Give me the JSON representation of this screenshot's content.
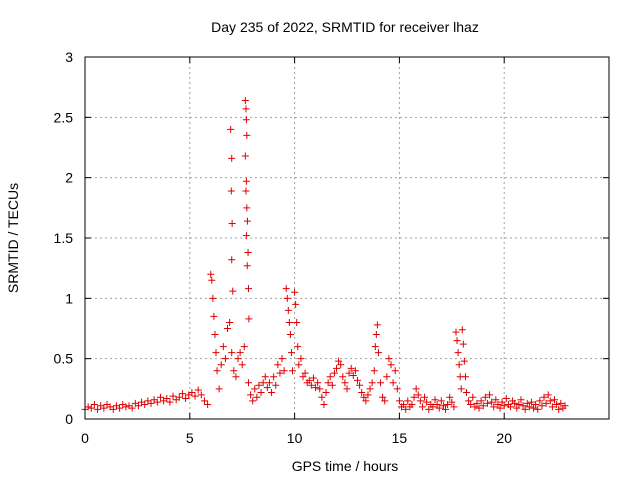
{
  "chart_data": {
    "type": "scatter",
    "title": "Day 235 of 2022, SRMTID for receiver lhaz",
    "xlabel": "GPS time / hours",
    "ylabel": "SRMTID / TECUs",
    "xlim": [
      0,
      25
    ],
    "ylim": [
      0,
      3
    ],
    "xticks": [
      0,
      5,
      10,
      15,
      20
    ],
    "xtick_labels": [
      "0",
      "5",
      "10",
      "15",
      "20"
    ],
    "yticks": [
      0,
      0.5,
      1,
      1.5,
      2,
      2.5,
      3
    ],
    "ytick_labels": [
      "0",
      "0.5",
      "1",
      "1.5",
      "2",
      "2.5",
      "3"
    ],
    "grid": true,
    "marker": "+",
    "color": "#e00000",
    "series": [
      {
        "name": "SRMTID",
        "points": [
          [
            0.0,
            0.08
          ],
          [
            0.15,
            0.1
          ],
          [
            0.3,
            0.09
          ],
          [
            0.45,
            0.12
          ],
          [
            0.6,
            0.08
          ],
          [
            0.75,
            0.11
          ],
          [
            0.9,
            0.09
          ],
          [
            1.05,
            0.12
          ],
          [
            1.2,
            0.1
          ],
          [
            1.35,
            0.08
          ],
          [
            1.5,
            0.11
          ],
          [
            1.65,
            0.09
          ],
          [
            1.8,
            0.12
          ],
          [
            1.95,
            0.1
          ],
          [
            2.1,
            0.11
          ],
          [
            2.25,
            0.09
          ],
          [
            2.4,
            0.13
          ],
          [
            2.55,
            0.11
          ],
          [
            2.7,
            0.14
          ],
          [
            2.85,
            0.12
          ],
          [
            3.0,
            0.15
          ],
          [
            3.15,
            0.13
          ],
          [
            3.3,
            0.16
          ],
          [
            3.45,
            0.14
          ],
          [
            3.6,
            0.18
          ],
          [
            3.75,
            0.15
          ],
          [
            3.9,
            0.17
          ],
          [
            4.05,
            0.14
          ],
          [
            4.2,
            0.19
          ],
          [
            4.35,
            0.16
          ],
          [
            4.5,
            0.18
          ],
          [
            4.65,
            0.21
          ],
          [
            4.8,
            0.17
          ],
          [
            4.95,
            0.2
          ],
          [
            5.1,
            0.22
          ],
          [
            5.25,
            0.19
          ],
          [
            5.4,
            0.24
          ],
          [
            5.55,
            0.2
          ],
          [
            5.7,
            0.15
          ],
          [
            5.85,
            0.12
          ],
          [
            6.0,
            1.2
          ],
          [
            6.05,
            1.15
          ],
          [
            6.1,
            1.0
          ],
          [
            6.15,
            0.85
          ],
          [
            6.2,
            0.7
          ],
          [
            6.25,
            0.55
          ],
          [
            6.3,
            0.4
          ],
          [
            6.4,
            0.25
          ],
          [
            6.5,
            0.45
          ],
          [
            6.6,
            0.6
          ],
          [
            6.7,
            0.5
          ],
          [
            6.8,
            0.75
          ],
          [
            6.9,
            0.8
          ],
          [
            7.0,
            0.55
          ],
          [
            7.1,
            0.4
          ],
          [
            7.2,
            0.35
          ],
          [
            7.3,
            0.5
          ],
          [
            7.4,
            0.55
          ],
          [
            7.5,
            0.45
          ],
          [
            7.6,
            0.6
          ],
          [
            6.95,
            2.4
          ],
          [
            7.0,
            2.16
          ],
          [
            6.98,
            1.89
          ],
          [
            7.02,
            1.62
          ],
          [
            7.0,
            1.32
          ],
          [
            7.05,
            1.06
          ],
          [
            7.65,
            2.64
          ],
          [
            7.68,
            2.57
          ],
          [
            7.7,
            2.48
          ],
          [
            7.72,
            2.35
          ],
          [
            7.65,
            2.18
          ],
          [
            7.7,
            1.97
          ],
          [
            7.68,
            1.89
          ],
          [
            7.72,
            1.75
          ],
          [
            7.75,
            1.64
          ],
          [
            7.7,
            1.52
          ],
          [
            7.78,
            1.38
          ],
          [
            7.74,
            1.27
          ],
          [
            7.8,
            1.08
          ],
          [
            7.82,
            0.83
          ],
          [
            7.8,
            0.3
          ],
          [
            7.9,
            0.2
          ],
          [
            8.0,
            0.15
          ],
          [
            8.1,
            0.25
          ],
          [
            8.2,
            0.18
          ],
          [
            8.3,
            0.28
          ],
          [
            8.4,
            0.22
          ],
          [
            8.5,
            0.3
          ],
          [
            8.6,
            0.35
          ],
          [
            8.7,
            0.26
          ],
          [
            8.8,
            0.3
          ],
          [
            8.9,
            0.22
          ],
          [
            9.0,
            0.35
          ],
          [
            9.1,
            0.28
          ],
          [
            9.2,
            0.45
          ],
          [
            9.3,
            0.38
          ],
          [
            9.4,
            0.5
          ],
          [
            9.5,
            0.4
          ],
          [
            9.6,
            1.08
          ],
          [
            9.65,
            1.0
          ],
          [
            9.7,
            0.9
          ],
          [
            9.75,
            0.8
          ],
          [
            9.8,
            0.7
          ],
          [
            9.85,
            0.55
          ],
          [
            9.9,
            0.4
          ],
          [
            10.0,
            1.05
          ],
          [
            10.05,
            0.95
          ],
          [
            10.1,
            0.8
          ],
          [
            10.15,
            0.6
          ],
          [
            10.2,
            0.45
          ],
          [
            10.3,
            0.5
          ],
          [
            10.4,
            0.35
          ],
          [
            10.5,
            0.38
          ],
          [
            10.6,
            0.3
          ],
          [
            10.7,
            0.32
          ],
          [
            10.8,
            0.28
          ],
          [
            10.9,
            0.34
          ],
          [
            11.0,
            0.26
          ],
          [
            11.1,
            0.3
          ],
          [
            11.2,
            0.25
          ],
          [
            11.3,
            0.18
          ],
          [
            11.4,
            0.12
          ],
          [
            11.5,
            0.22
          ],
          [
            11.6,
            0.3
          ],
          [
            11.7,
            0.35
          ],
          [
            11.8,
            0.28
          ],
          [
            11.9,
            0.38
          ],
          [
            12.0,
            0.42
          ],
          [
            12.1,
            0.48
          ],
          [
            12.2,
            0.45
          ],
          [
            12.3,
            0.35
          ],
          [
            12.4,
            0.3
          ],
          [
            12.5,
            0.25
          ],
          [
            12.6,
            0.38
          ],
          [
            12.7,
            0.42
          ],
          [
            12.8,
            0.36
          ],
          [
            12.9,
            0.4
          ],
          [
            13.0,
            0.32
          ],
          [
            13.1,
            0.28
          ],
          [
            13.2,
            0.22
          ],
          [
            13.3,
            0.18
          ],
          [
            13.4,
            0.15
          ],
          [
            13.5,
            0.2
          ],
          [
            13.6,
            0.25
          ],
          [
            13.7,
            0.3
          ],
          [
            13.8,
            0.4
          ],
          [
            13.85,
            0.6
          ],
          [
            13.9,
            0.7
          ],
          [
            13.95,
            0.78
          ],
          [
            14.0,
            0.55
          ],
          [
            14.1,
            0.3
          ],
          [
            14.2,
            0.18
          ],
          [
            14.3,
            0.15
          ],
          [
            14.4,
            0.35
          ],
          [
            14.5,
            0.5
          ],
          [
            14.6,
            0.45
          ],
          [
            14.7,
            0.3
          ],
          [
            14.8,
            0.4
          ],
          [
            14.9,
            0.25
          ],
          [
            15.0,
            0.15
          ],
          [
            15.1,
            0.1
          ],
          [
            15.2,
            0.12
          ],
          [
            15.3,
            0.08
          ],
          [
            15.4,
            0.15
          ],
          [
            15.5,
            0.1
          ],
          [
            15.6,
            0.12
          ],
          [
            15.7,
            0.18
          ],
          [
            15.8,
            0.25
          ],
          [
            15.9,
            0.2
          ],
          [
            16.0,
            0.15
          ],
          [
            16.1,
            0.1
          ],
          [
            16.2,
            0.18
          ],
          [
            16.3,
            0.14
          ],
          [
            16.4,
            0.08
          ],
          [
            16.5,
            0.12
          ],
          [
            16.6,
            0.1
          ],
          [
            16.7,
            0.16
          ],
          [
            16.8,
            0.12
          ],
          [
            16.9,
            0.09
          ],
          [
            17.0,
            0.15
          ],
          [
            17.1,
            0.11
          ],
          [
            17.2,
            0.08
          ],
          [
            17.3,
            0.12
          ],
          [
            17.4,
            0.18
          ],
          [
            17.5,
            0.14
          ],
          [
            17.6,
            0.1
          ],
          [
            17.7,
            0.72
          ],
          [
            17.75,
            0.65
          ],
          [
            17.8,
            0.55
          ],
          [
            17.85,
            0.45
          ],
          [
            17.9,
            0.35
          ],
          [
            17.95,
            0.25
          ],
          [
            18.0,
            0.74
          ],
          [
            18.05,
            0.62
          ],
          [
            18.1,
            0.48
          ],
          [
            18.15,
            0.35
          ],
          [
            18.2,
            0.22
          ],
          [
            18.3,
            0.15
          ],
          [
            18.4,
            0.12
          ],
          [
            18.5,
            0.18
          ],
          [
            18.6,
            0.1
          ],
          [
            18.7,
            0.13
          ],
          [
            18.8,
            0.09
          ],
          [
            18.9,
            0.15
          ],
          [
            19.0,
            0.11
          ],
          [
            19.1,
            0.18
          ],
          [
            19.2,
            0.13
          ],
          [
            19.3,
            0.2
          ],
          [
            19.4,
            0.14
          ],
          [
            19.5,
            0.1
          ],
          [
            19.6,
            0.16
          ],
          [
            19.7,
            0.12
          ],
          [
            19.8,
            0.09
          ],
          [
            19.9,
            0.14
          ],
          [
            20.0,
            0.11
          ],
          [
            20.1,
            0.17
          ],
          [
            20.2,
            0.12
          ],
          [
            20.3,
            0.1
          ],
          [
            20.4,
            0.15
          ],
          [
            20.5,
            0.13
          ],
          [
            20.6,
            0.09
          ],
          [
            20.7,
            0.12
          ],
          [
            20.8,
            0.16
          ],
          [
            20.9,
            0.11
          ],
          [
            21.0,
            0.08
          ],
          [
            21.1,
            0.13
          ],
          [
            21.2,
            0.1
          ],
          [
            21.3,
            0.14
          ],
          [
            21.4,
            0.09
          ],
          [
            21.5,
            0.12
          ],
          [
            21.6,
            0.08
          ],
          [
            21.7,
            0.15
          ],
          [
            21.8,
            0.11
          ],
          [
            21.9,
            0.18
          ],
          [
            22.0,
            0.13
          ],
          [
            22.1,
            0.2
          ],
          [
            22.2,
            0.15
          ],
          [
            22.3,
            0.1
          ],
          [
            22.4,
            0.16
          ],
          [
            22.5,
            0.12
          ],
          [
            22.6,
            0.08
          ],
          [
            22.7,
            0.13
          ],
          [
            22.8,
            0.09
          ],
          [
            22.9,
            0.11
          ]
        ]
      }
    ]
  }
}
